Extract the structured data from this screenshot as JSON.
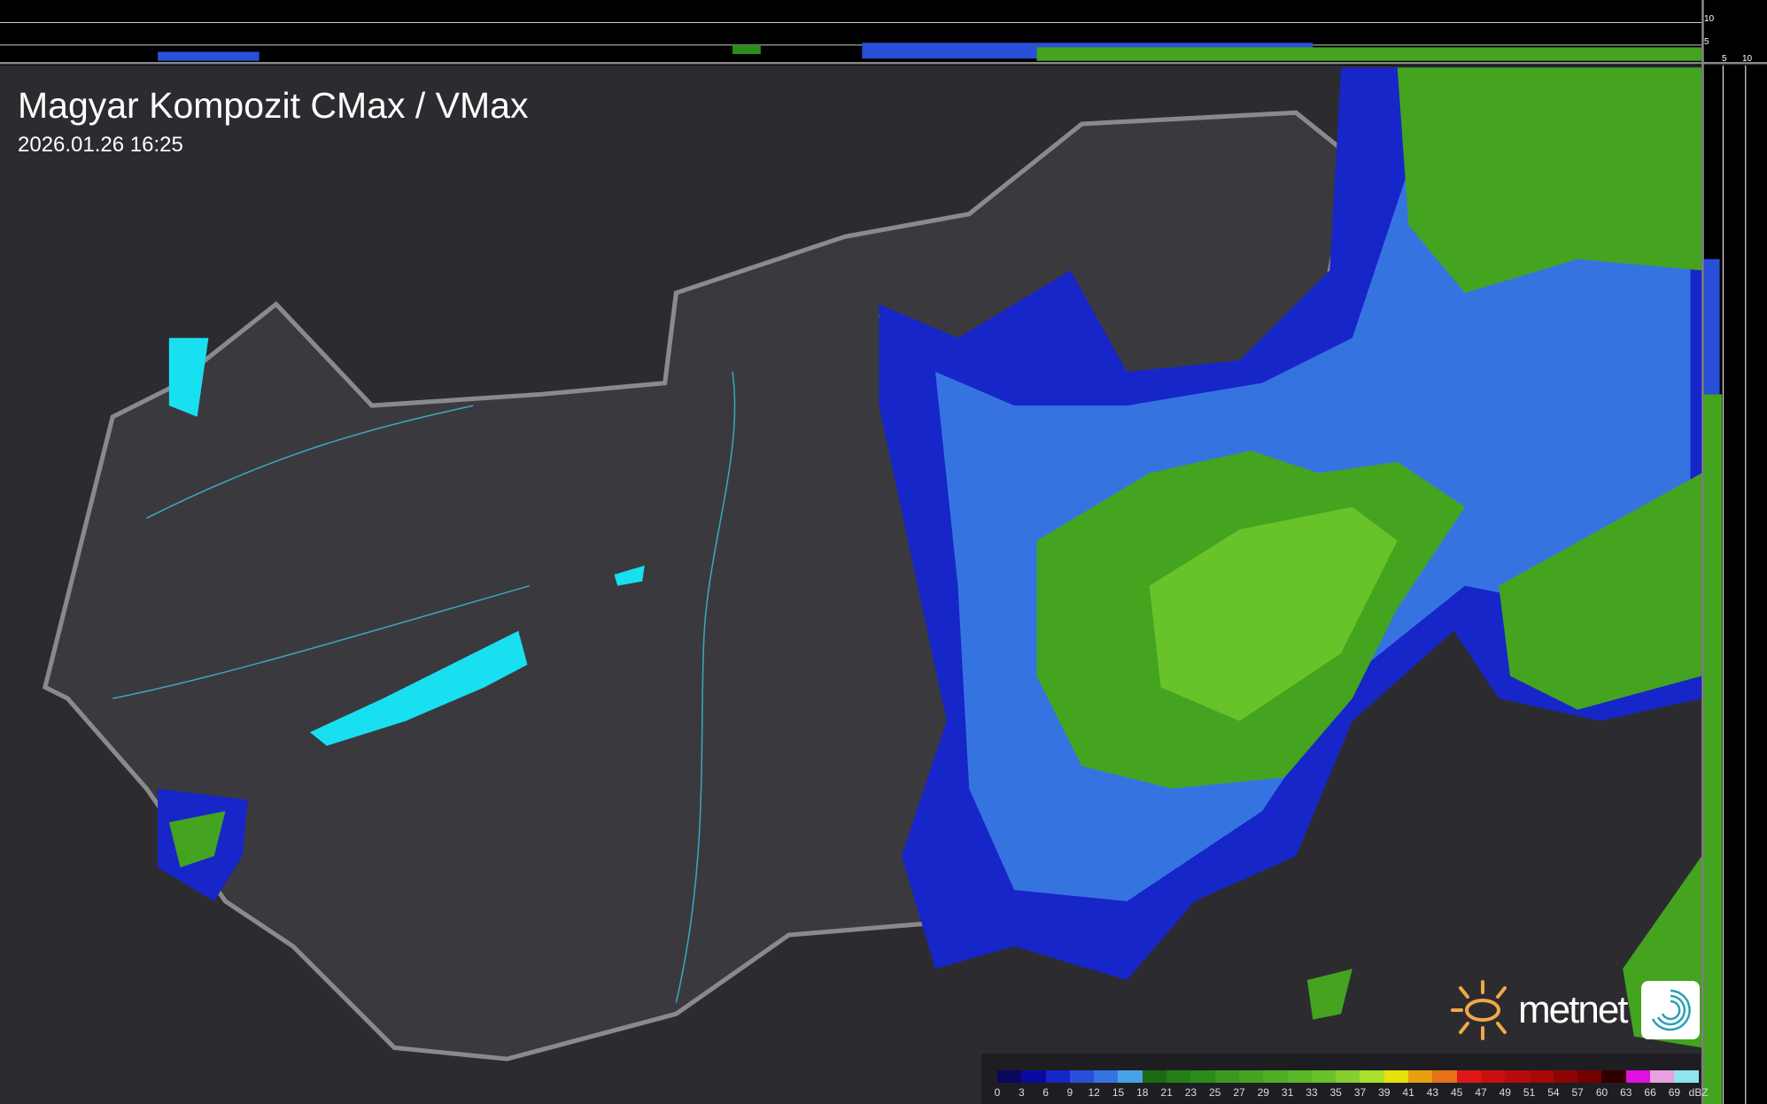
{
  "header": {
    "title": "Magyar Kompozit CMax / VMax",
    "timestamp": "2026.01.26 16:25"
  },
  "profile_axes": {
    "top_ticks": [
      "10",
      "5"
    ],
    "right_ticks": [
      "5",
      "10"
    ]
  },
  "legend": {
    "unit": "dBZ",
    "labels": [
      "0",
      "3",
      "6",
      "9",
      "12",
      "15",
      "18",
      "21",
      "23",
      "25",
      "27",
      "29",
      "31",
      "33",
      "35",
      "37",
      "39",
      "41",
      "43",
      "45",
      "47",
      "49",
      "51",
      "54",
      "57",
      "60",
      "63",
      "66",
      "69"
    ],
    "colors": [
      "#08085e",
      "#0a0aa0",
      "#1726c8",
      "#2a4fd8",
      "#3574e0",
      "#46a4e6",
      "#1c6a12",
      "#237f16",
      "#2b8c1a",
      "#3a9a1e",
      "#44a420",
      "#50ae24",
      "#5ab828",
      "#68c22a",
      "#86cf2c",
      "#a8e02c",
      "#e8e00c",
      "#e8a010",
      "#e87018",
      "#e01818",
      "#c81010",
      "#b80c0c",
      "#a80808",
      "#900404",
      "#740000",
      "#300000",
      "#e010e0",
      "#e8a0e0",
      "#90e4ec"
    ]
  },
  "logo": {
    "brand": "metnet"
  },
  "colors": {
    "background": "#2c2c30",
    "border": "#8a8a8e",
    "rivers": "#3aa6c0",
    "lakes": "#18e0f0"
  }
}
